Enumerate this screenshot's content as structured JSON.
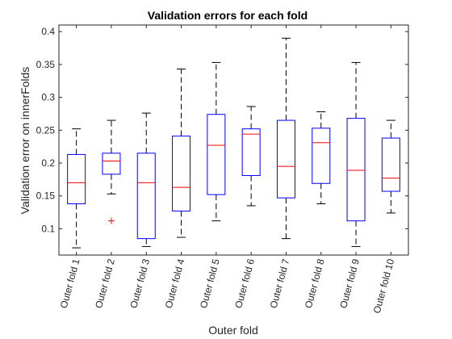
{
  "chart_data": {
    "type": "box",
    "title": "Validation errors for each fold",
    "xlabel": "Outer fold",
    "ylabel": "Validation error on innerFolds",
    "ylim": [
      0.06,
      0.41
    ],
    "yticks": [
      0.1,
      0.15,
      0.2,
      0.25,
      0.3,
      0.35,
      0.4
    ],
    "ytick_labels": [
      "0.1",
      "0.15",
      "0.2",
      "0.25",
      "0.3",
      "0.35",
      "0.4"
    ],
    "categories": [
      "Outer fold 1",
      "Outer fold 2",
      "Outer fold 3",
      "Outer fold 4",
      "Outer fold 5",
      "Outer fold 6",
      "Outer fold 7",
      "Outer fold 8",
      "Outer fold 9",
      "Outer fold 10"
    ],
    "boxes": [
      {
        "whisker_low": 0.071,
        "q1": 0.138,
        "median": 0.17,
        "q3": 0.213,
        "whisker_high": 0.252,
        "outliers": []
      },
      {
        "whisker_low": 0.153,
        "q1": 0.183,
        "median": 0.203,
        "q3": 0.215,
        "whisker_high": 0.265,
        "outliers": [
          0.112
        ]
      },
      {
        "whisker_low": 0.073,
        "q1": 0.085,
        "median": 0.17,
        "q3": 0.215,
        "whisker_high": 0.276,
        "outliers": []
      },
      {
        "whisker_low": 0.087,
        "q1": 0.127,
        "median": 0.163,
        "q3": 0.241,
        "whisker_high": 0.343,
        "outliers": []
      },
      {
        "whisker_low": 0.112,
        "q1": 0.152,
        "median": 0.227,
        "q3": 0.274,
        "whisker_high": 0.353,
        "outliers": []
      },
      {
        "whisker_low": 0.135,
        "q1": 0.181,
        "median": 0.244,
        "q3": 0.252,
        "whisker_high": 0.286,
        "outliers": []
      },
      {
        "whisker_low": 0.085,
        "q1": 0.147,
        "median": 0.195,
        "q3": 0.265,
        "whisker_high": 0.39,
        "outliers": []
      },
      {
        "whisker_low": 0.138,
        "q1": 0.169,
        "median": 0.231,
        "q3": 0.253,
        "whisker_high": 0.278,
        "outliers": []
      },
      {
        "whisker_low": 0.073,
        "q1": 0.112,
        "median": 0.189,
        "q3": 0.268,
        "whisker_high": 0.353,
        "outliers": []
      },
      {
        "whisker_low": 0.124,
        "q1": 0.157,
        "median": 0.177,
        "q3": 0.238,
        "whisker_high": 0.265,
        "outliers": []
      }
    ],
    "colors": {
      "box": "#0000ff",
      "median": "#ff0000",
      "whisker": "#000000",
      "outlier": "#ff0000"
    },
    "grid": false,
    "legend": "none"
  }
}
